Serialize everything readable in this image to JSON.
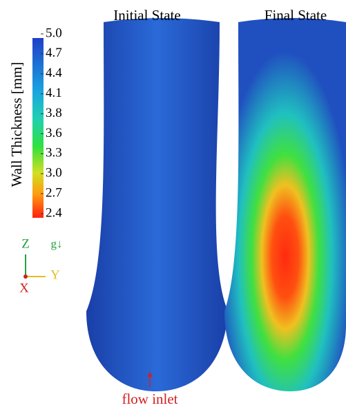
{
  "titles": [
    "Initial State",
    "Final State"
  ],
  "colorbar": {
    "label": "Wall Thickness [mm]",
    "ticks": [
      "5.0",
      "4.7",
      "4.4",
      "4.1",
      "3.8",
      "3.6",
      "3.3",
      "3.0",
      "2.7",
      "2.4"
    ]
  },
  "axes": {
    "z": "Z",
    "g": "g↓",
    "y": "Y",
    "x": "X"
  },
  "annotation": "flow inlet"
}
